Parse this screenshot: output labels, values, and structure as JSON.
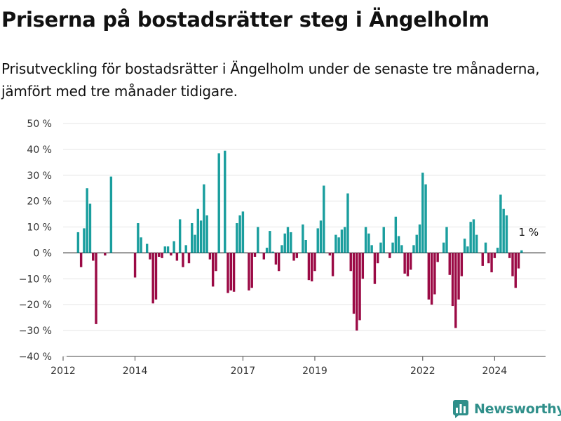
{
  "title": "Priserna på bostadsrätter steg i Ängelholm",
  "subtitle": "Prisutveckling för bostadsrätter i Ängelholm under de senaste tre månaderna, jämfört med tre månader tidigare.",
  "brand": {
    "name": "Newsworthy",
    "icon": "newsworthy-logo-icon"
  },
  "colors": {
    "positive": "#1a9e9e",
    "negative": "#9b0a45",
    "grid": "#e5e5e5",
    "zero": "#222222"
  },
  "chart_data": {
    "type": "bar",
    "unit": "%",
    "ylim": [
      -40,
      50
    ],
    "y_ticks": [
      -40,
      -30,
      -20,
      -10,
      0,
      10,
      20,
      30,
      40,
      50
    ],
    "y_tick_labels": [
      "−40 %",
      "−30 %",
      "−20 %",
      "−10 %",
      "0 %",
      "10 %",
      "20 %",
      "30 %",
      "40 %",
      "50 %"
    ],
    "x_tick_labels": [
      "2012",
      "2014",
      "2017",
      "2019",
      "2022",
      "2024"
    ],
    "x_tick_years": [
      2012,
      2014,
      2017,
      2019,
      2022,
      2024
    ],
    "x_start": "2012-01",
    "x_end": "2025-06",
    "grid": true,
    "annotation": {
      "text": "1 %",
      "x": "2024-10",
      "y": 1
    },
    "x": [
      "2012-06",
      "2012-07",
      "2012-08",
      "2012-09",
      "2012-10",
      "2012-11",
      "2012-12",
      "2013-01",
      "2013-02",
      "2013-03",
      "2013-04",
      "2013-05",
      "2013-06",
      "2013-07",
      "2014-01",
      "2014-02",
      "2014-03",
      "2014-04",
      "2014-05",
      "2014-06",
      "2014-07",
      "2014-08",
      "2014-09",
      "2014-10",
      "2014-11",
      "2014-12",
      "2015-01",
      "2015-02",
      "2015-03",
      "2015-04",
      "2015-05",
      "2015-06",
      "2015-07",
      "2015-08",
      "2015-09",
      "2015-10",
      "2015-11",
      "2015-12",
      "2016-01",
      "2016-02",
      "2016-03",
      "2016-04",
      "2016-05",
      "2016-06",
      "2016-07",
      "2016-08",
      "2016-09",
      "2016-10",
      "2016-11",
      "2016-12",
      "2017-01",
      "2017-02",
      "2017-03",
      "2017-04",
      "2017-05",
      "2017-06",
      "2017-07",
      "2017-08",
      "2017-09",
      "2017-10",
      "2017-11",
      "2017-12",
      "2018-01",
      "2018-02",
      "2018-03",
      "2018-04",
      "2018-05",
      "2018-06",
      "2018-07",
      "2018-08",
      "2018-09",
      "2018-10",
      "2018-11",
      "2018-12",
      "2019-01",
      "2019-02",
      "2019-03",
      "2019-04",
      "2019-05",
      "2019-06",
      "2019-07",
      "2019-08",
      "2019-09",
      "2019-10",
      "2019-11",
      "2019-12",
      "2020-01",
      "2020-02",
      "2020-03",
      "2020-04",
      "2020-05",
      "2020-06",
      "2020-07",
      "2020-08",
      "2020-09",
      "2020-10",
      "2020-11",
      "2020-12",
      "2021-01",
      "2021-02",
      "2021-03",
      "2021-04",
      "2021-05",
      "2021-06",
      "2021-07",
      "2021-08",
      "2021-09",
      "2021-10",
      "2021-11",
      "2021-12",
      "2022-01",
      "2022-02",
      "2022-03",
      "2022-04",
      "2022-05",
      "2022-06",
      "2022-07",
      "2022-08",
      "2022-09",
      "2022-10",
      "2022-11",
      "2022-12",
      "2023-01",
      "2023-02",
      "2023-03",
      "2023-04",
      "2023-05",
      "2023-06",
      "2023-07",
      "2023-08",
      "2023-09",
      "2023-10",
      "2023-11",
      "2023-12",
      "2024-01",
      "2024-02",
      "2024-03",
      "2024-04",
      "2024-05",
      "2024-06",
      "2024-07",
      "2024-08",
      "2024-09",
      "2024-10"
    ],
    "values": [
      8,
      -5.5,
      9.5,
      25,
      19,
      -3,
      -27.5,
      0,
      0,
      -1,
      0,
      29.5,
      0,
      0,
      -9.5,
      11.5,
      6,
      0,
      3.5,
      -2.5,
      -19.5,
      -18,
      -1.5,
      -2,
      2.5,
      2.5,
      -1,
      4.5,
      -3,
      13,
      -5.5,
      3,
      -4,
      11.5,
      7,
      17,
      12.5,
      26.5,
      14.5,
      -2.5,
      -13,
      -7,
      38.5,
      0,
      39.5,
      -15.5,
      -14.5,
      -15,
      11.5,
      14.5,
      16,
      0,
      -14.5,
      -13.5,
      -1.5,
      10,
      0,
      -2.5,
      2,
      8.5,
      0.5,
      -4.5,
      -7,
      3,
      7.5,
      10,
      8,
      -3,
      -2,
      0,
      11,
      5,
      -10.5,
      -11,
      -7,
      9.5,
      12.5,
      26,
      0,
      -1,
      -9,
      7,
      6,
      9,
      10,
      23,
      -7,
      -23.5,
      -30,
      -26,
      -10,
      10,
      7.5,
      3,
      -12,
      -4,
      4,
      10,
      0,
      -2,
      4,
      14,
      6.5,
      3,
      -8,
      -9,
      -6.5,
      3,
      7,
      11,
      31,
      26.5,
      -18,
      -20,
      -16,
      -3.5,
      0,
      4,
      10,
      -8.5,
      -20.5,
      -29,
      -18,
      -9,
      5.5,
      2.5,
      12,
      13,
      7,
      0,
      -5,
      4,
      -4,
      -7.5,
      -2,
      2,
      22.5,
      17,
      14.5,
      -2,
      -9,
      -13.5,
      -6,
      1
    ]
  }
}
